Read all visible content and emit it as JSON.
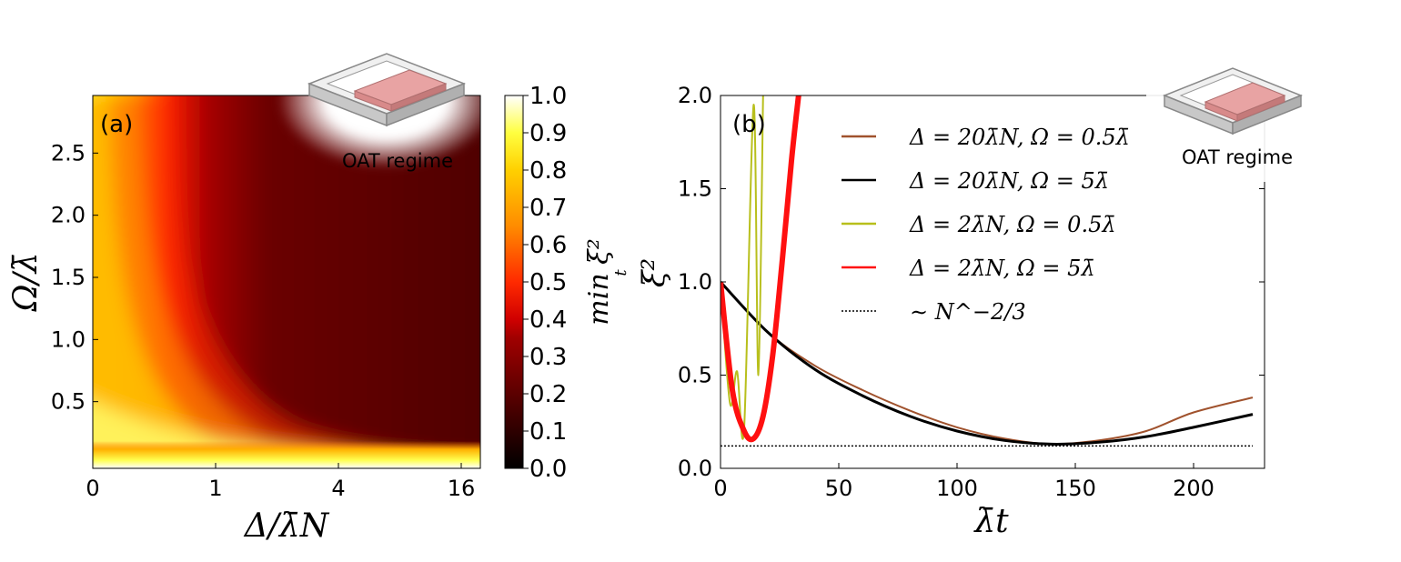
{
  "panel_a": {
    "label": "(a)",
    "annotation": "OAT regime",
    "xlabel": "Δ/λ̄N",
    "ylabel": "Ω/λ̄",
    "xticks": [
      "0",
      "1",
      "4",
      "16"
    ],
    "yticks": [
      "0.5",
      "1.0",
      "1.5",
      "2.0",
      "2.5"
    ],
    "colorbar_label": "min ξ²",
    "colorbar_sub": "t",
    "colorbar_ticks": [
      "0.0",
      "0.1",
      "0.2",
      "0.3",
      "0.4",
      "0.5",
      "0.6",
      "0.7",
      "0.8",
      "0.9",
      "1.0"
    ]
  },
  "panel_b": {
    "label": "(b)",
    "annotation": "OAT regime",
    "xlabel": "λ̄t",
    "ylabel": "ξ²",
    "xticks": [
      "0",
      "50",
      "100",
      "150",
      "200"
    ],
    "yticks": [
      "0.0",
      "0.5",
      "1.0",
      "1.5",
      "2.0"
    ],
    "legend": [
      {
        "label": "Δ = 20λ̄N, Ω = 0.5λ̄",
        "color": "#a0522d"
      },
      {
        "label": "Δ = 20λ̄N, Ω = 5λ̄",
        "color": "#000000"
      },
      {
        "label": "Δ = 2λ̄N, Ω = 0.5λ̄",
        "color": "#b8bf1c"
      },
      {
        "label": "Δ = 2λ̄N, Ω = 5λ̄",
        "color": "#ff1010"
      },
      {
        "label": "∼ N^−2/3",
        "color": "#000000"
      }
    ]
  },
  "chart_data": [
    {
      "type": "heatmap",
      "xlabel": "Δ/λ̄N",
      "ylabel": "Ω/λ̄",
      "x_ticks": [
        0,
        1,
        4,
        16
      ],
      "y_ticks": [
        0.5,
        1.0,
        1.5,
        2.0,
        2.5
      ],
      "ylim": [
        0,
        3.0
      ],
      "colorbar_range": [
        0.0,
        1.0
      ],
      "colormap": "hot",
      "annotation": "OAT regime"
    },
    {
      "type": "line",
      "xlabel": "λ̄t",
      "ylabel": "ξ²",
      "xlim": [
        0,
        230
      ],
      "ylim": [
        0,
        2.0
      ],
      "series": [
        {
          "name": "Δ = 20λ̄N, Ω = 0.5λ̄",
          "color": "#a0522d",
          "x": [
            0,
            20,
            40,
            60,
            80,
            100,
            120,
            140,
            160,
            180,
            200,
            225
          ],
          "y": [
            1.0,
            0.73,
            0.55,
            0.42,
            0.31,
            0.22,
            0.16,
            0.13,
            0.15,
            0.2,
            0.3,
            0.38
          ]
        },
        {
          "name": "Δ = 20λ̄N, Ω = 5λ̄",
          "color": "#000000",
          "x": [
            0,
            20,
            40,
            60,
            80,
            100,
            120,
            140,
            160,
            180,
            200,
            225
          ],
          "y": [
            1.0,
            0.73,
            0.53,
            0.39,
            0.28,
            0.2,
            0.15,
            0.13,
            0.14,
            0.17,
            0.22,
            0.29
          ]
        },
        {
          "name": "Δ = 2λ̄N, Ω = 0.5λ̄",
          "color": "#b8bf1c",
          "x": [
            0,
            4,
            7,
            10,
            14,
            16,
            18
          ],
          "y": [
            1.0,
            0.35,
            0.52,
            0.22,
            1.95,
            0.5,
            2.0
          ]
        },
        {
          "name": "Δ = 2λ̄N, Ω = 5λ̄",
          "color": "#ff1010",
          "x": [
            0,
            5,
            10,
            14,
            18,
            22,
            26,
            30,
            33
          ],
          "y": [
            1.0,
            0.42,
            0.2,
            0.16,
            0.28,
            0.6,
            1.1,
            1.65,
            2.0
          ]
        },
        {
          "name": "∼ N^−2/3",
          "color": "#000000",
          "x": [
            0,
            225
          ],
          "y": [
            0.12,
            0.12
          ]
        }
      ]
    }
  ]
}
